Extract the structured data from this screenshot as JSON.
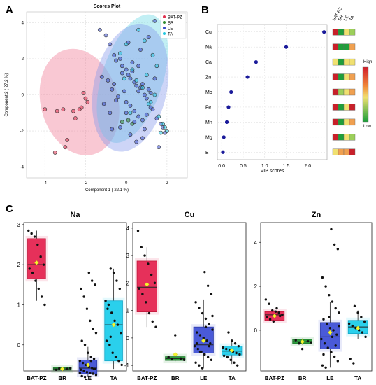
{
  "panels": {
    "a": "A",
    "b": "B",
    "c": "C"
  },
  "colors": {
    "BAT-PZ": "#e0304e",
    "BR": "#2e8b2e",
    "LE": "#3b4fc8",
    "TA": "#22c7e0",
    "vip_point": "#1a1a9a",
    "mean_marker": "#f5f530"
  },
  "chart_data": [
    {
      "type": "scatter",
      "title": "Scores Plot",
      "xlabel": "Component 1 ( 22.1 %)",
      "ylabel": "Component 2 ( 27.2 %)",
      "xlim": [
        -4.9,
        3.0
      ],
      "ylim": [
        -4.6,
        4.6
      ],
      "x_ticks": [
        "-4",
        "-2",
        "0",
        "2"
      ],
      "y_ticks": [
        "4",
        "2",
        "0",
        "-2",
        "-4"
      ],
      "grid": true,
      "legend_position": "top-right",
      "legend": [
        "BAT-PZ",
        "BR",
        "LE",
        "TA"
      ],
      "ellipses": [
        {
          "group": "BAT-PZ",
          "cx": -2.3,
          "cy": -0.4,
          "rx": 1.9,
          "ry": 3.0,
          "rotation_deg": -15
        },
        {
          "group": "TA",
          "cx": 0.3,
          "cy": 0.9,
          "rx": 1.5,
          "ry": 3.7,
          "rotation_deg": 18
        },
        {
          "group": "LE",
          "cx": 0.2,
          "cy": 0.4,
          "rx": 1.8,
          "ry": 3.6,
          "rotation_deg": 12
        }
      ],
      "series": [
        {
          "name": "BAT-PZ",
          "x": [
            -4.0,
            -3.4,
            -3.1,
            -2.9,
            -2.6,
            -2.2,
            -2.1,
            -2.0,
            -1.9,
            -2.5,
            -3.5,
            -3.0,
            -2.3
          ],
          "y": [
            -0.8,
            -0.9,
            -0.8,
            -2.5,
            -0.9,
            -0.7,
            0.1,
            -0.2,
            -0.4,
            -1.3,
            -3.2,
            -2.9,
            -0.8
          ]
        },
        {
          "name": "BR",
          "x": [
            -0.2,
            0.1,
            0.3
          ],
          "y": [
            -1.5,
            -1.4,
            -1.6
          ]
        },
        {
          "name": "LE",
          "x": [
            -1.3,
            -1.0,
            -0.8,
            -0.6,
            -0.5,
            -0.3,
            -0.2,
            0.0,
            0.1,
            0.2,
            0.3,
            0.4,
            0.5,
            0.6,
            0.7,
            0.8,
            0.9,
            1.0,
            1.1,
            1.2,
            -1.2,
            -0.9,
            -0.7,
            -0.4,
            0.0,
            0.2,
            0.4,
            0.6,
            0.8,
            1.0,
            1.3,
            1.5,
            1.7,
            1.9,
            -0.5,
            -0.1,
            0.3,
            0.7,
            1.1,
            1.4,
            -0.8,
            -0.3,
            0.2,
            0.5,
            0.9,
            -1.1,
            -0.6,
            0.1,
            0.6,
            1.2,
            -0.2,
            0.4,
            0.8,
            1.6,
            1.8,
            0.0,
            -0.7,
            1.4
          ],
          "y": [
            3.6,
            3.3,
            2.8,
            2.2,
            1.9,
            2.0,
            1.6,
            1.4,
            1.1,
            0.9,
            1.3,
            0.7,
            0.5,
            0.2,
            0.4,
            0.6,
            0.0,
            -0.2,
            0.3,
            0.1,
            1.0,
            0.8,
            0.3,
            -0.1,
            -0.4,
            -0.6,
            -0.9,
            -1.2,
            -1.4,
            -1.1,
            -0.8,
            -1.3,
            -1.6,
            -2.1,
            -0.3,
            0.2,
            1.8,
            2.5,
            3.2,
            4.1,
            -1.0,
            -1.8,
            -2.2,
            -2.6,
            -1.9,
            -0.5,
            0.6,
            2.9,
            1.6,
            -0.7,
            1.2,
            -1.5,
            -2.4,
            -2.9,
            -1.8,
            -1.0,
            -1.9,
            0.9
          ]
        },
        {
          "name": "TA",
          "x": [
            -0.3,
            0.0,
            0.6,
            0.9,
            1.3,
            1.5,
            1.9,
            2.0,
            1.7,
            1.2,
            0.8,
            0.3,
            -0.1,
            1.0,
            1.4,
            1.8,
            0.5,
            1.1,
            0.2,
            1.6
          ],
          "y": [
            2.3,
            2.8,
            3.6,
            3.0,
            2.2,
            1.6,
            -1.8,
            -2.0,
            -2.1,
            -0.4,
            0.4,
            1.4,
            0.9,
            1.1,
            0.0,
            -1.6,
            0.8,
            -0.5,
            -1.0,
            -1.2
          ]
        }
      ]
    },
    {
      "type": "scatter",
      "title": "",
      "xlabel": "VIP scores",
      "xlim": [
        -0.1,
        2.45
      ],
      "x_ticks": [
        "0.0",
        "0.5",
        "1.0",
        "1.5",
        "2.0"
      ],
      "grid": true,
      "categories": [
        "Cu",
        "Na",
        "Ca",
        "Zn",
        "Mo",
        "Fe",
        "Mn",
        "Mg",
        "B"
      ],
      "values": [
        2.38,
        1.5,
        0.8,
        0.6,
        0.22,
        0.16,
        0.12,
        0.05,
        0.03
      ],
      "heatmap_columns": [
        "BAT-PZ",
        "BR",
        "LE",
        "TA"
      ],
      "heatmap_levels": [
        [
          0.92,
          0.05,
          0.45,
          0.4
        ],
        [
          0.95,
          0.15,
          0.2,
          0.7
        ],
        [
          0.55,
          0.08,
          0.5,
          0.6
        ],
        [
          0.9,
          0.1,
          0.5,
          0.75
        ],
        [
          0.85,
          0.3,
          0.55,
          0.7
        ],
        [
          0.9,
          0.1,
          0.5,
          0.8
        ],
        [
          0.8,
          0.1,
          0.55,
          0.75
        ],
        [
          0.85,
          0.15,
          0.6,
          0.4
        ],
        [
          0.6,
          0.65,
          0.7,
          0.9
        ]
      ],
      "color_legend": {
        "high": "High",
        "low": "Low"
      }
    },
    {
      "type": "box",
      "title": "Na",
      "categories": [
        "BAT-PZ",
        "BR",
        "LE",
        "TA"
      ],
      "ylim": [
        -0.65,
        3.05
      ],
      "y_ticks": [
        3,
        2,
        1,
        0
      ],
      "boxes": [
        {
          "group": "BAT-PZ",
          "q1": 1.65,
          "median": 2.0,
          "q3": 2.65,
          "whisker_low": 1.1,
          "whisker_high": 2.85,
          "mean": 2.05,
          "points": [
            2.85,
            2.78,
            2.7,
            2.5,
            2.2,
            2.0,
            1.9,
            1.8,
            1.6,
            1.4,
            1.2,
            1.0
          ]
        },
        {
          "group": "BR",
          "q1": -0.63,
          "median": -0.6,
          "q3": -0.57,
          "whisker_low": -0.64,
          "whisker_high": -0.55,
          "mean": -0.6,
          "points": [
            -0.6,
            -0.58,
            -0.62,
            -0.59,
            -0.61
          ]
        },
        {
          "group": "LE",
          "q1": -0.72,
          "median": -0.58,
          "q3": -0.38,
          "whisker_low": -0.8,
          "whisker_high": -0.05,
          "mean": -0.5,
          "points": [
            1.8,
            1.6,
            1.5,
            1.4,
            1.2,
            0.9,
            0.6,
            0.4,
            0.3,
            0.1,
            0.0,
            -0.2,
            -0.3,
            -0.35,
            -0.4,
            -0.45,
            -0.5,
            -0.55,
            -0.58,
            -0.6,
            -0.62,
            -0.65,
            -0.68,
            -0.7,
            -0.72,
            -0.75,
            -0.78,
            -0.8,
            -0.5,
            -0.4,
            -0.6,
            -0.7
          ]
        },
        {
          "group": "TA",
          "q1": -0.4,
          "median": 0.5,
          "q3": 1.1,
          "whisker_low": -0.6,
          "whisker_high": 1.9,
          "mean": 0.5,
          "points": [
            1.9,
            1.8,
            1.6,
            1.4,
            1.1,
            1.0,
            0.8,
            0.6,
            0.5,
            0.3,
            0.1,
            0.0,
            -0.2,
            -0.3,
            -0.4,
            -0.5,
            0.9,
            0.2
          ]
        }
      ]
    },
    {
      "type": "box",
      "title": "Cu",
      "categories": [
        "BAT-PZ",
        "BR",
        "LE",
        "TA"
      ],
      "ylim": [
        -1.2,
        4.2
      ],
      "y_ticks": [
        4,
        3,
        2,
        1,
        0,
        -1
      ],
      "boxes": [
        {
          "group": "BAT-PZ",
          "q1": 0.95,
          "median": 1.85,
          "q3": 2.8,
          "whisker_low": 0.4,
          "whisker_high": 3.3,
          "mean": 1.95,
          "points": [
            3.9,
            3.3,
            3.0,
            2.7,
            2.3,
            2.0,
            1.8,
            1.6,
            1.3,
            0.9,
            0.6,
            0.4
          ]
        },
        {
          "group": "BR",
          "q1": -0.82,
          "median": -0.75,
          "q3": -0.68,
          "whisker_low": -0.85,
          "whisker_high": -0.65,
          "mean": -0.6,
          "points": [
            -0.75,
            -0.8,
            -0.7,
            -0.78,
            0.1
          ]
        },
        {
          "group": "LE",
          "q1": -0.55,
          "median": -0.25,
          "q3": 0.4,
          "whisker_low": -1.1,
          "whisker_high": 1.4,
          "mean": -0.1,
          "points": [
            2.4,
            1.9,
            1.6,
            1.3,
            1.1,
            0.9,
            0.7,
            0.5,
            0.3,
            0.2,
            0.1,
            0.0,
            -0.1,
            -0.2,
            -0.3,
            -0.4,
            -0.5,
            -0.6,
            -0.7,
            -0.8,
            -0.9,
            -1.0,
            -1.1,
            0.4,
            -0.3,
            0.8,
            -0.2,
            -0.5
          ]
        },
        {
          "group": "TA",
          "q1": -0.62,
          "median": -0.48,
          "q3": -0.3,
          "whisker_low": -0.95,
          "whisker_high": -0.1,
          "mean": -0.45,
          "points": [
            0.2,
            -0.1,
            -0.2,
            -0.3,
            -0.35,
            -0.4,
            -0.45,
            -0.5,
            -0.55,
            -0.6,
            -0.65,
            -0.7,
            -0.8,
            -0.9,
            -1.0
          ]
        }
      ]
    },
    {
      "type": "box",
      "title": "Zn",
      "categories": [
        "BAT-PZ",
        "BR",
        "LE",
        "TA"
      ],
      "ylim": [
        -1.85,
        4.9
      ],
      "y_ticks": [
        4,
        2,
        0
      ],
      "boxes": [
        {
          "group": "BAT-PZ",
          "q1": 0.45,
          "median": 0.7,
          "q3": 0.85,
          "whisker_low": 0.4,
          "whisker_high": 0.9,
          "mean": 0.65,
          "points": [
            1.4,
            1.2,
            0.9,
            0.85,
            0.8,
            0.7,
            0.6,
            0.5,
            0.4,
            1.0,
            0.65
          ]
        },
        {
          "group": "BR",
          "q1": -0.6,
          "median": -0.52,
          "q3": -0.42,
          "whisker_low": -0.65,
          "whisker_high": -0.38,
          "mean": -0.52,
          "points": [
            -0.5,
            -0.55,
            -0.45,
            -0.6,
            -0.85
          ]
        },
        {
          "group": "LE",
          "q1": -0.85,
          "median": -0.3,
          "q3": 0.35,
          "whisker_low": -1.7,
          "whisker_high": 1.3,
          "mean": -0.1,
          "points": [
            4.6,
            3.9,
            3.7,
            2.4,
            2.0,
            1.6,
            1.3,
            1.0,
            0.8,
            0.5,
            0.3,
            0.1,
            0.0,
            -0.2,
            -0.4,
            -0.6,
            -0.8,
            -1.0,
            -1.2,
            -1.4,
            -1.6,
            -1.7,
            0.6,
            -0.3,
            -0.7,
            0.2,
            -1.1
          ]
        },
        {
          "group": "TA",
          "q1": -0.15,
          "median": 0.15,
          "q3": 0.45,
          "whisker_low": -0.4,
          "whisker_high": 0.9,
          "mean": 0.1,
          "points": [
            1.1,
            0.8,
            0.6,
            0.4,
            0.3,
            0.2,
            0.1,
            0.0,
            -0.1,
            -0.3,
            -1.3,
            -1.5
          ]
        }
      ]
    }
  ]
}
